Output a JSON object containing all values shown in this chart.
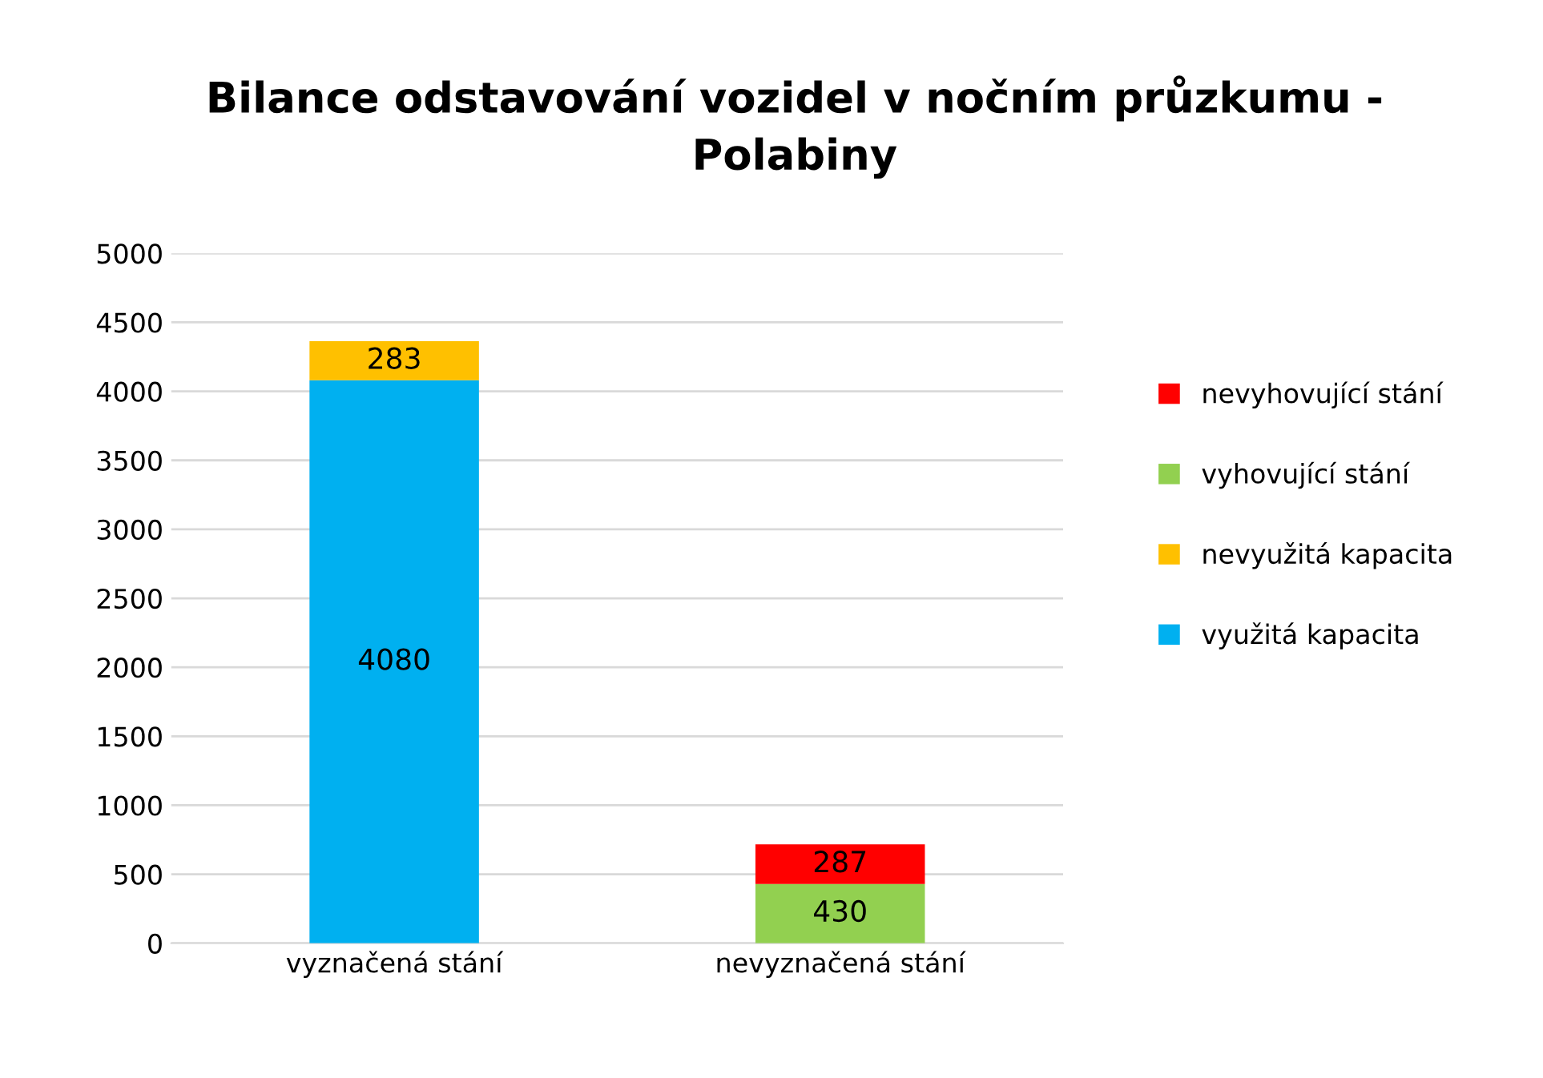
{
  "chart_data": {
    "type": "bar",
    "title": "Bilance odstavování vozidel v nočním průzkumu -\nPolabiny",
    "categories": [
      "vyznačená stání",
      "nevyznačená stání"
    ],
    "series": [
      {
        "name": "využitá kapacita",
        "color": "#00b0f0",
        "values": [
          4080,
          null
        ]
      },
      {
        "name": "nevyužitá kapacita",
        "color": "#ffc000",
        "values": [
          283,
          null
        ]
      },
      {
        "name": "vyhovující stání",
        "color": "#92d050",
        "values": [
          null,
          430
        ]
      },
      {
        "name": "nevyhovující stání",
        "color": "#ff0000",
        "values": [
          null,
          287
        ]
      }
    ],
    "stacked": true,
    "ylim": [
      0,
      5000
    ],
    "yticks": [
      0,
      500,
      1000,
      1500,
      2000,
      2500,
      3000,
      3500,
      4000,
      4500,
      5000
    ],
    "grid": "y",
    "legend": "right",
    "data_labels": true
  }
}
